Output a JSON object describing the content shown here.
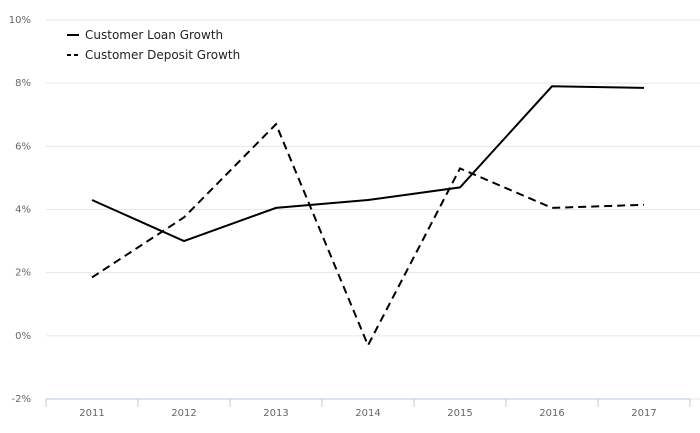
{
  "chart_data": {
    "type": "line",
    "categories": [
      "2011",
      "2012",
      "2013",
      "2014",
      "2015",
      "2016",
      "2017"
    ],
    "series": [
      {
        "name": "Customer Loan Growth",
        "values": [
          4.3,
          3.0,
          4.05,
          4.3,
          4.7,
          7.9,
          7.85
        ],
        "color": "#000000",
        "dash": "solid"
      },
      {
        "name": "Customer Deposit Growth",
        "values": [
          1.85,
          3.75,
          6.7,
          -0.3,
          5.3,
          4.05,
          4.15
        ],
        "color": "#000000",
        "dash": "dashed"
      }
    ],
    "y_ticks": [
      "-2%",
      "0%",
      "2%",
      "4%",
      "6%",
      "8%",
      "10%"
    ],
    "ylim": [
      -2,
      10
    ],
    "grid": true,
    "legend_position": "top-left",
    "title": "",
    "xlabel": "",
    "ylabel": ""
  }
}
